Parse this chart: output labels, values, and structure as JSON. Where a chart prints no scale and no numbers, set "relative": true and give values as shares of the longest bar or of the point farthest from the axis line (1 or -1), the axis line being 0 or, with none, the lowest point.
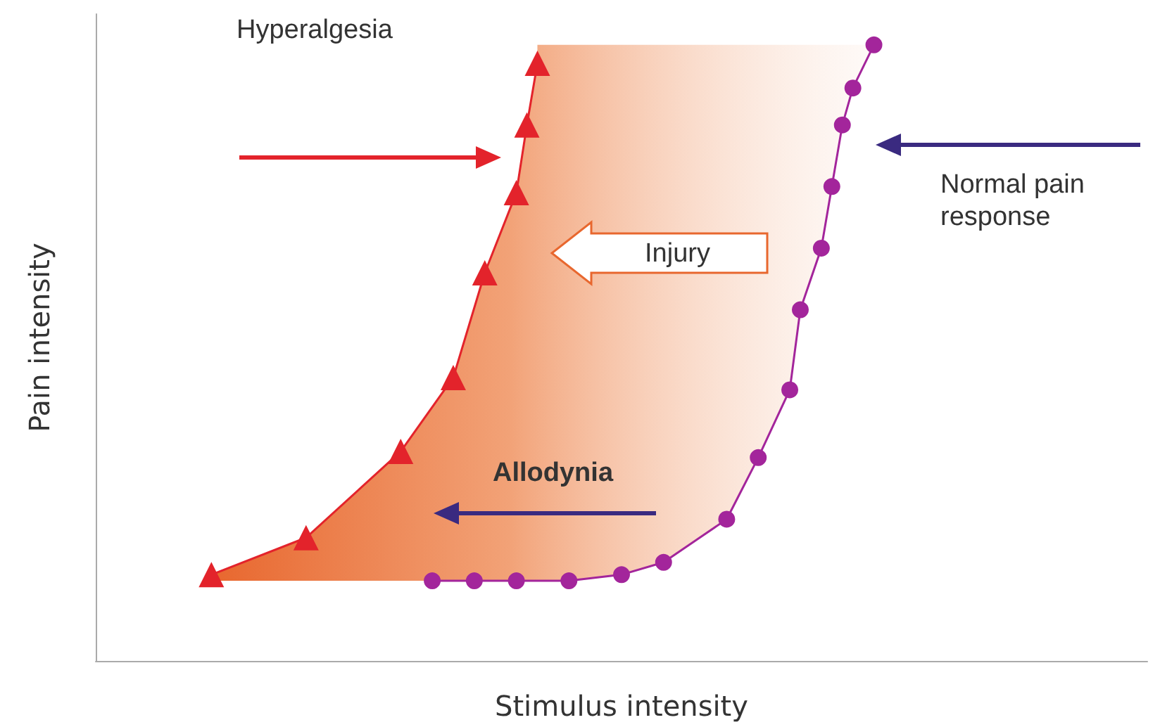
{
  "chart_data": {
    "type": "line",
    "relative": true,
    "xlabel": "Stimulus intensity",
    "ylabel": "Pain intensity",
    "grid": false,
    "annotations": [
      "Hyperalgesia",
      "Injury",
      "Allodynia",
      "Normal pain response"
    ],
    "categories": [
      null,
      null,
      null,
      null,
      null,
      null,
      null,
      null,
      null,
      null,
      null,
      null,
      null,
      null,
      null,
      null,
      null,
      null,
      null,
      null,
      null,
      null,
      null,
      null,
      null,
      null,
      null,
      null,
      null,
      null,
      null,
      null,
      null,
      null,
      null,
      null,
      null,
      null,
      null,
      null,
      null,
      null,
      null,
      null,
      null,
      null,
      null,
      null,
      null,
      null,
      null,
      null,
      null,
      null,
      null,
      null,
      null,
      null,
      null,
      null,
      null,
      null,
      null,
      null,
      null,
      null,
      null,
      null,
      null,
      null,
      null,
      null,
      null,
      null,
      null,
      null,
      null,
      null,
      null,
      null,
      null,
      null,
      null,
      null,
      null,
      null,
      null,
      null,
      null,
      null,
      null,
      null,
      null,
      null,
      null,
      null,
      null,
      null,
      null,
      null,
      null
    ],
    "series": [
      {
        "color": "#e3232b",
        "marker": "triangle",
        "values": [
          null,
          null,
          null,
          null,
          null,
          null,
          null,
          null,
          null,
          null,
          null,
          0.14,
          null,
          null,
          null,
          null,
          null,
          null,
          null,
          null,
          0.2,
          null,
          null,
          null,
          null,
          null,
          null,
          null,
          null,
          0.34,
          null,
          null,
          null,
          null,
          0.46,
          null,
          null,
          0.63,
          null,
          null,
          0.76,
          0.87,
          0.97,
          null,
          null,
          null,
          null,
          null,
          null,
          null,
          null,
          null,
          null,
          null,
          null,
          null,
          null,
          null,
          null,
          null,
          null,
          null,
          null,
          null,
          null,
          null,
          null,
          null,
          null,
          null,
          null,
          null,
          null,
          null,
          null,
          null,
          null,
          null,
          null,
          null,
          null,
          null,
          null,
          null,
          null,
          null,
          null,
          null,
          null,
          null,
          null,
          null,
          null,
          null,
          null,
          null,
          null,
          null,
          null,
          null,
          null
        ]
      },
      {
        "color": "#a3259b",
        "marker": "circle",
        "values": [
          null,
          null,
          null,
          null,
          null,
          null,
          null,
          null,
          null,
          null,
          null,
          null,
          null,
          null,
          null,
          null,
          null,
          null,
          null,
          null,
          null,
          null,
          null,
          null,
          null,
          null,
          null,
          null,
          null,
          null,
          null,
          null,
          0.13,
          null,
          null,
          null,
          0.13,
          null,
          null,
          null,
          0.13,
          null,
          null,
          null,
          null,
          0.13,
          null,
          null,
          null,
          null,
          0.14,
          null,
          null,
          null,
          0.16,
          null,
          null,
          null,
          null,
          null,
          0.23,
          null,
          null,
          0.33,
          null,
          null,
          0.44,
          0.57,
          null,
          0.67,
          0.77,
          0.87,
          0.93,
          null,
          1.0,
          null,
          null,
          null,
          null,
          null,
          null,
          null,
          null,
          null,
          null,
          null,
          null,
          null,
          null,
          null,
          null,
          null,
          null,
          null,
          null,
          null,
          null,
          null,
          null,
          null,
          null
        ]
      }
    ]
  }
}
